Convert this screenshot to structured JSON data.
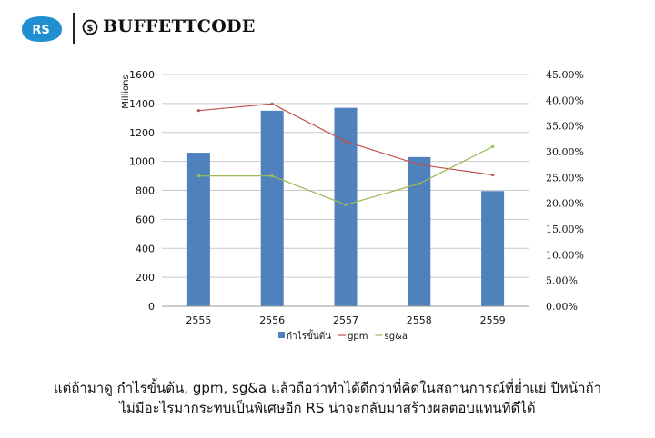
{
  "brand": {
    "rs_logo_text": "RS",
    "buffettcode_text": "BUFFETTCODE",
    "colors": {
      "rs_blue": "#1f8fd0",
      "text": "#111111"
    }
  },
  "chart_data": {
    "type": "bar",
    "categories": [
      "2555",
      "2556",
      "2557",
      "2558",
      "2559"
    ],
    "y_left": {
      "label": "Millions",
      "min": 0,
      "max": 1600,
      "ticks": [
        "0",
        "200",
        "400",
        "600",
        "800",
        "1000",
        "1200",
        "1400",
        "1600"
      ]
    },
    "y_right": {
      "min": 0,
      "max": 45,
      "ticks": [
        "0.00%",
        "5.00%",
        "10.00%",
        "15.00%",
        "20.00%",
        "25.00%",
        "30.00%",
        "35.00%",
        "40.00%",
        "45.00%"
      ]
    },
    "series": [
      {
        "name": "กำไรขั้นต้น",
        "type": "bar",
        "axis": "left",
        "color": "#4f81bd",
        "values": [
          1060,
          1350,
          1370,
          1030,
          795
        ]
      },
      {
        "name": "gpm",
        "type": "line",
        "axis": "right",
        "color": "#c0504d",
        "values": [
          38.0,
          39.3,
          32.0,
          27.5,
          25.5
        ]
      },
      {
        "name": "sg&a",
        "type": "line",
        "axis": "right",
        "color": "#9bbb59",
        "values": [
          25.3,
          25.3,
          19.7,
          23.8,
          31.0
        ]
      }
    ],
    "legend": "bottom",
    "grid": true
  },
  "caption": {
    "line1": "แต่ถ้ามาดู กำไรขั้นต้น, gpm, sg&a แล้วถือว่าทำได้ดีกว่าที่คิดในสถานการณ์ที่ย่ำแย่ ปีหน้าถ้า",
    "line2": "ไม่มีอะไรมากระทบเป็นพิเศษอีก RS น่าจะกลับมาสร้างผลตอบแทนที่ดีได้"
  }
}
